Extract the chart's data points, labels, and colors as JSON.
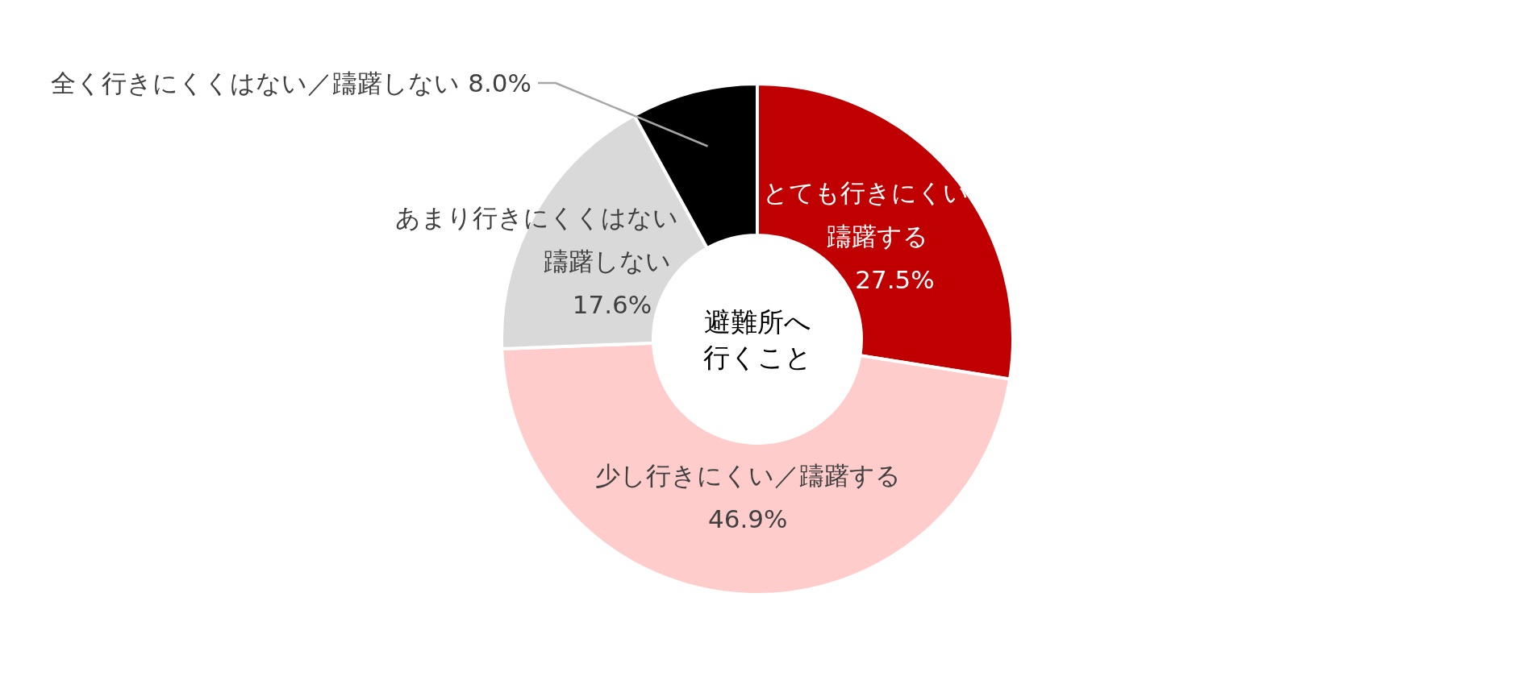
{
  "chart_data": {
    "type": "donut",
    "title": "避難所へ行くこと",
    "categories": [
      "とても行きにくい躊躇する",
      "少し行きにくい／躊躇する",
      "あまり行きにくくはない躊躇しない",
      "全く行きにくくはない／躊躇しない"
    ],
    "values": [
      27.5,
      46.9,
      17.6,
      8.0
    ],
    "colors": [
      "#c00000",
      "#ffcccc",
      "#d9d9d9",
      "#000000"
    ],
    "value_labels": [
      "27.5%",
      "46.9%",
      "17.6%",
      "8.0%"
    ],
    "legend": false
  }
}
